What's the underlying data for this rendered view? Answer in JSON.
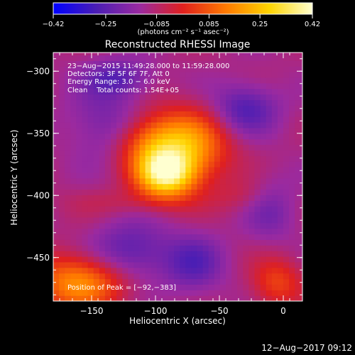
{
  "chart_data": {
    "type": "heatmap",
    "title": "Reconstructed RHESSI Image",
    "xlabel": "Heliocentric X (arcsec)",
    "ylabel": "Heliocentric Y (arcsec)",
    "xlim": [
      -180,
      15
    ],
    "ylim": [
      -485,
      -285
    ],
    "x_ticks": [
      -150,
      -100,
      -50,
      0
    ],
    "x_tick_labels": [
      "−150",
      "−100",
      "−50",
      "0"
    ],
    "y_ticks": [
      -300,
      -350,
      -400,
      -450
    ],
    "y_tick_labels": [
      "−300",
      "−350",
      "−400",
      "−450"
    ],
    "colorbar": {
      "range": [
        -0.42,
        0.42
      ],
      "ticks": [
        -0.42,
        -0.25,
        -0.085,
        0.085,
        0.25,
        0.42
      ],
      "tick_labels": [
        "−0.42",
        "−0.25",
        "−0.085",
        "0.085",
        "0.25",
        "0.42"
      ],
      "unit_label": "(photons cm⁻² s⁻¹ asec⁻²)",
      "colors": [
        "#0000ff",
        "#4b1eb4",
        "#9a2aa0",
        "#e0201e",
        "#ff7a00",
        "#ffd400",
        "#ffffd0"
      ]
    },
    "annotations": [
      "23−Aug−2015 11:49:28.000 to 11:59:28.000",
      "Detectors: 3F 5F 6F 7F, Att 0",
      "Energy Range: 3.0 − 6.0 keV",
      "Clean    Total counts: 1.54E+05"
    ],
    "peak_label": "Position of Peak = [−92,−383]",
    "peak": [
      -92,
      -383
    ],
    "sources": [
      {
        "x": -92,
        "y": -383,
        "amp": 0.42,
        "sx": 16,
        "sy": 13
      },
      {
        "x": -75,
        "y": -360,
        "amp": 0.3,
        "sx": 22,
        "sy": 20
      },
      {
        "x": -105,
        "y": -358,
        "amp": 0.18,
        "sx": 18,
        "sy": 16
      },
      {
        "x": -160,
        "y": -470,
        "amp": 0.28,
        "sx": 25,
        "sy": 16
      },
      {
        "x": -5,
        "y": -470,
        "amp": 0.16,
        "sx": 14,
        "sy": 14
      },
      {
        "x": -120,
        "y": -405,
        "amp": 0.05,
        "sx": 35,
        "sy": 8
      },
      {
        "x": -30,
        "y": -400,
        "amp": 0.06,
        "sx": 20,
        "sy": 10
      },
      {
        "x": -130,
        "y": -305,
        "amp": -0.14,
        "sx": 18,
        "sy": 10
      },
      {
        "x": -30,
        "y": -330,
        "amp": -0.16,
        "sx": 18,
        "sy": 14
      },
      {
        "x": -140,
        "y": -340,
        "amp": -0.1,
        "sx": 20,
        "sy": 20
      },
      {
        "x": -120,
        "y": -445,
        "amp": -0.15,
        "sx": 22,
        "sy": 16
      },
      {
        "x": -70,
        "y": -455,
        "amp": -0.14,
        "sx": 16,
        "sy": 16
      },
      {
        "x": -10,
        "y": -410,
        "amp": -0.1,
        "sx": 14,
        "sy": 18
      }
    ]
  },
  "footer": {
    "date": "12−Aug−2017 09:12"
  }
}
